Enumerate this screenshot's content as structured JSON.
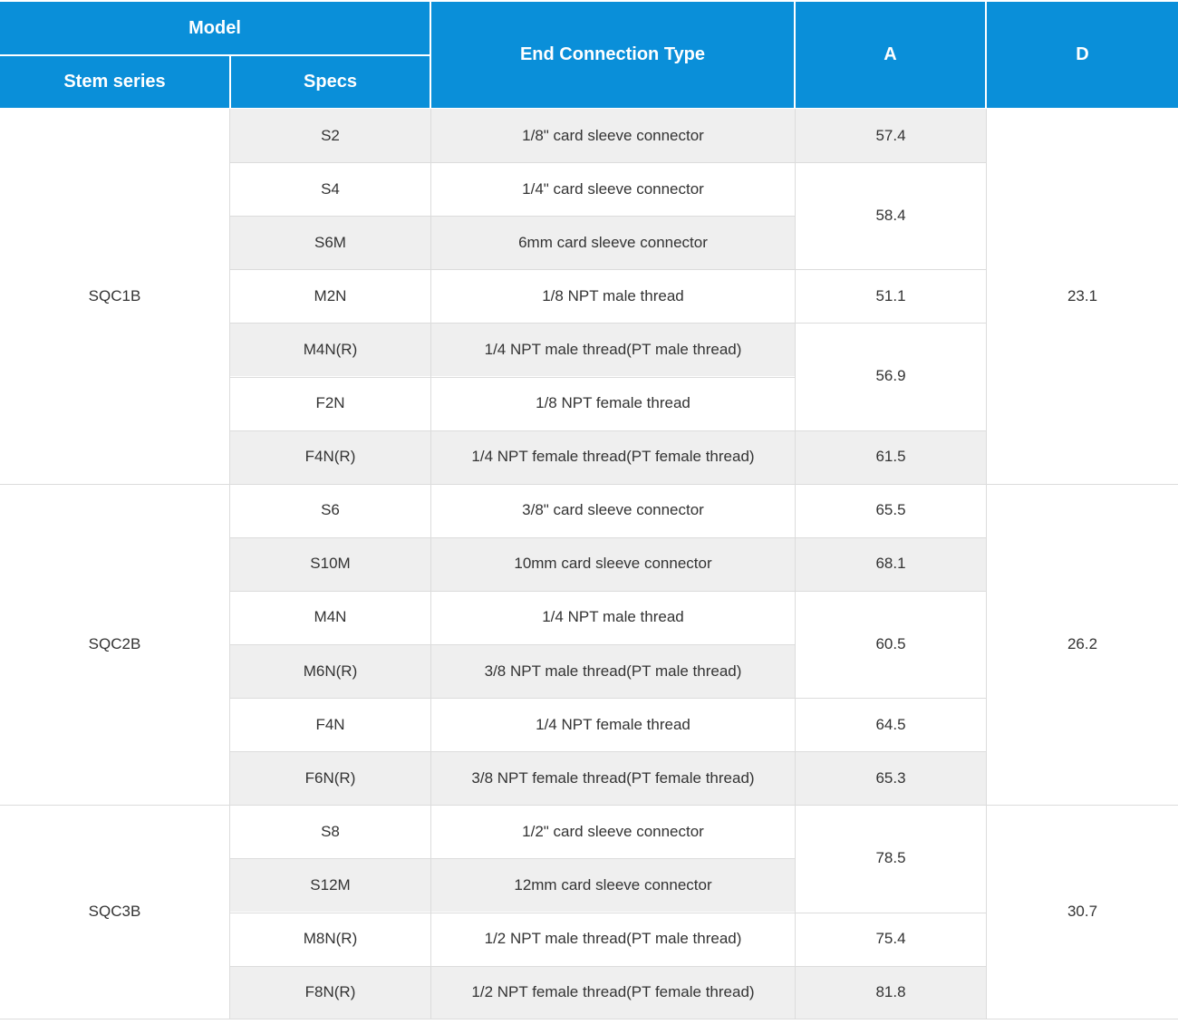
{
  "header": {
    "model": "Model",
    "stem_series": "Stem series",
    "specs": "Specs",
    "end_connection_type": "End Connection Type",
    "a": "A",
    "d": "D"
  },
  "colors": {
    "header_bg": "#0a8fd9",
    "row_shade": "#efefef",
    "grid": "#dcdcdc"
  },
  "groups": [
    {
      "stem": "SQC1B",
      "d": "23.1",
      "start": 0,
      "span": 7
    },
    {
      "stem": "SQC2B",
      "d": "26.2",
      "start": 7,
      "span": 6
    },
    {
      "stem": "SQC3B",
      "d": "30.7",
      "start": 13,
      "span": 4
    }
  ],
  "rows": [
    {
      "spec": "S2",
      "type": "1/8\" card sleeve connector"
    },
    {
      "spec": "S4",
      "type": "1/4\" card sleeve connector"
    },
    {
      "spec": "S6M",
      "type": "6mm card sleeve connector"
    },
    {
      "spec": "M2N",
      "type": "1/8 NPT male thread"
    },
    {
      "spec": "M4N(R)",
      "type": "1/4 NPT male thread(PT male thread)"
    },
    {
      "spec": "F2N",
      "type": "1/8 NPT female thread"
    },
    {
      "spec": "F4N(R)",
      "type": "1/4 NPT female thread(PT female thread)"
    },
    {
      "spec": "S6",
      "type": "3/8\" card sleeve connector"
    },
    {
      "spec": "S10M",
      "type": "10mm card sleeve connector"
    },
    {
      "spec": "M4N",
      "type": "1/4 NPT male thread"
    },
    {
      "spec": "M6N(R)",
      "type": "3/8 NPT male thread(PT male thread)"
    },
    {
      "spec": "F4N",
      "type": "1/4 NPT female thread"
    },
    {
      "spec": "F6N(R)",
      "type": "3/8 NPT female thread(PT female thread)"
    },
    {
      "spec": "S8",
      "type": "1/2\" card sleeve connector"
    },
    {
      "spec": "S12M",
      "type": "12mm card sleeve connector"
    },
    {
      "spec": "M8N(R)",
      "type": "1/2 NPT male thread(PT male thread)"
    },
    {
      "spec": "F8N(R)",
      "type": "1/2 NPT female thread(PT female thread)"
    }
  ],
  "a_values": [
    {
      "value": "57.4",
      "start": 0,
      "span": 1
    },
    {
      "value": "58.4",
      "start": 1,
      "span": 2
    },
    {
      "value": "51.1",
      "start": 3,
      "span": 1
    },
    {
      "value": "56.9",
      "start": 4,
      "span": 2
    },
    {
      "value": "61.5",
      "start": 6,
      "span": 1
    },
    {
      "value": "65.5",
      "start": 7,
      "span": 1
    },
    {
      "value": "68.1",
      "start": 8,
      "span": 1
    },
    {
      "value": "60.5",
      "start": 9,
      "span": 2
    },
    {
      "value": "64.5",
      "start": 11,
      "span": 1
    },
    {
      "value": "65.3",
      "start": 12,
      "span": 1
    },
    {
      "value": "78.5",
      "start": 13,
      "span": 2
    },
    {
      "value": "75.4",
      "start": 15,
      "span": 1
    },
    {
      "value": "81.8",
      "start": 16,
      "span": 1
    }
  ]
}
